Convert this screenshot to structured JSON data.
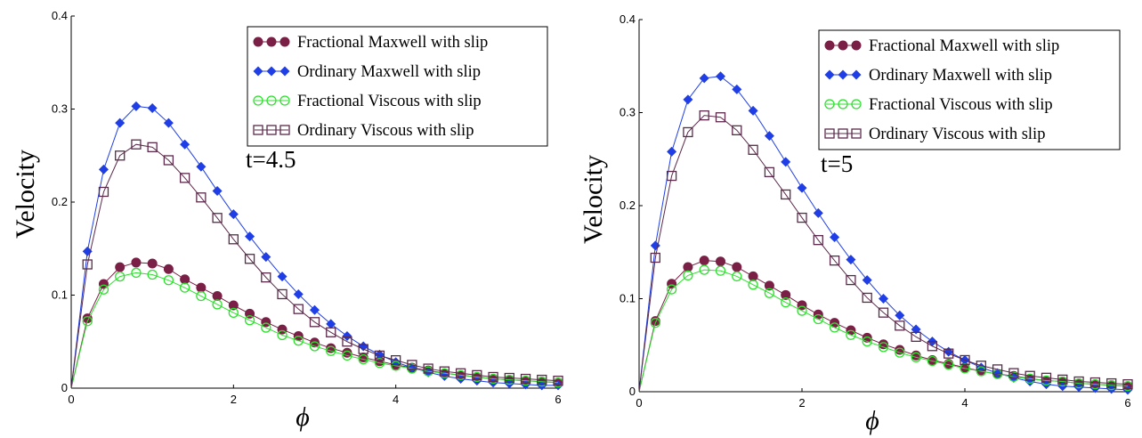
{
  "chart_data": [
    {
      "type": "line",
      "annotation": "t=4.5",
      "xlabel": "ϕ",
      "ylabel": "Velocity",
      "xlim": [
        0,
        6
      ],
      "ylim": [
        0,
        0.4
      ],
      "xticks": [
        "0",
        "2",
        "4",
        "6"
      ],
      "yticks": [
        "0",
        "0.1",
        "0.2",
        "0.3",
        "0.4"
      ],
      "grid": false,
      "legend_position": "top-right",
      "x": [
        0,
        0.2,
        0.4,
        0.6,
        0.8,
        1.0,
        1.2,
        1.4,
        1.6,
        1.8,
        2.0,
        2.2,
        2.4,
        2.6,
        2.8,
        3.0,
        3.2,
        3.4,
        3.6,
        3.8,
        4.0,
        4.2,
        4.4,
        4.6,
        4.8,
        5.0,
        5.2,
        5.4,
        5.6,
        5.8,
        6.0
      ],
      "series": [
        {
          "name": "Fractional Maxwell with slip",
          "color": "#7a1f45",
          "marker": "filled-circle",
          "values": [
            0.0,
            0.075,
            0.112,
            0.13,
            0.135,
            0.134,
            0.128,
            0.117,
            0.108,
            0.099,
            0.089,
            0.08,
            0.071,
            0.063,
            0.056,
            0.049,
            0.043,
            0.038,
            0.033,
            0.029,
            0.025,
            0.022,
            0.019,
            0.016,
            0.014,
            0.012,
            0.01,
            0.009,
            0.008,
            0.007,
            0.006
          ]
        },
        {
          "name": "Ordinary Maxwell with slip",
          "color": "#1f3ee6",
          "marker": "filled-diamond",
          "values": [
            0.0,
            0.147,
            0.235,
            0.285,
            0.303,
            0.301,
            0.285,
            0.262,
            0.238,
            0.212,
            0.187,
            0.163,
            0.141,
            0.12,
            0.101,
            0.084,
            0.069,
            0.056,
            0.045,
            0.036,
            0.028,
            0.022,
            0.017,
            0.013,
            0.01,
            0.008,
            0.006,
            0.005,
            0.004,
            0.003,
            0.003
          ]
        },
        {
          "name": "Fractional Viscous with slip",
          "color": "#2de02d",
          "marker": "open-circle",
          "values": [
            0.0,
            0.072,
            0.106,
            0.12,
            0.124,
            0.122,
            0.116,
            0.108,
            0.099,
            0.09,
            0.081,
            0.073,
            0.065,
            0.057,
            0.051,
            0.045,
            0.04,
            0.035,
            0.031,
            0.027,
            0.024,
            0.021,
            0.018,
            0.016,
            0.014,
            0.012,
            0.01,
            0.009,
            0.008,
            0.007,
            0.006
          ]
        },
        {
          "name": "Ordinary Viscous with slip",
          "color": "#5b2a4a",
          "marker": "open-square",
          "values": [
            0.0,
            0.133,
            0.211,
            0.25,
            0.262,
            0.259,
            0.245,
            0.226,
            0.205,
            0.183,
            0.16,
            0.139,
            0.119,
            0.101,
            0.085,
            0.071,
            0.06,
            0.05,
            0.042,
            0.035,
            0.03,
            0.025,
            0.021,
            0.018,
            0.016,
            0.014,
            0.012,
            0.011,
            0.01,
            0.009,
            0.008
          ]
        }
      ]
    },
    {
      "type": "line",
      "annotation": "t=5",
      "xlabel": "ϕ",
      "ylabel": "Velocity",
      "xlim": [
        0,
        6
      ],
      "ylim": [
        0,
        0.4
      ],
      "xticks": [
        "0",
        "2",
        "4",
        "6"
      ],
      "yticks": [
        "0",
        "0.1",
        "0.2",
        "0.3",
        "0.4"
      ],
      "grid": false,
      "legend_position": "top-right",
      "x": [
        0,
        0.2,
        0.4,
        0.6,
        0.8,
        1.0,
        1.2,
        1.4,
        1.6,
        1.8,
        2.0,
        2.2,
        2.4,
        2.6,
        2.8,
        3.0,
        3.2,
        3.4,
        3.6,
        3.8,
        4.0,
        4.2,
        4.4,
        4.6,
        4.8,
        5.0,
        5.2,
        5.4,
        5.6,
        5.8,
        6.0
      ],
      "series": [
        {
          "name": "Fractional Maxwell with slip",
          "color": "#7a1f45",
          "marker": "filled-circle",
          "values": [
            0.0,
            0.076,
            0.116,
            0.134,
            0.141,
            0.14,
            0.134,
            0.124,
            0.114,
            0.104,
            0.093,
            0.083,
            0.074,
            0.066,
            0.058,
            0.051,
            0.045,
            0.039,
            0.034,
            0.03,
            0.026,
            0.022,
            0.019,
            0.017,
            0.014,
            0.012,
            0.011,
            0.009,
            0.008,
            0.007,
            0.006
          ]
        },
        {
          "name": "Ordinary Maxwell with slip",
          "color": "#1f3ee6",
          "marker": "filled-diamond",
          "values": [
            0.0,
            0.157,
            0.258,
            0.314,
            0.337,
            0.339,
            0.325,
            0.302,
            0.275,
            0.247,
            0.219,
            0.192,
            0.166,
            0.142,
            0.12,
            0.1,
            0.082,
            0.067,
            0.054,
            0.043,
            0.034,
            0.026,
            0.02,
            0.015,
            0.011,
            0.008,
            0.006,
            0.005,
            0.004,
            0.003,
            0.002
          ]
        },
        {
          "name": "Fractional Viscous with slip",
          "color": "#2de02d",
          "marker": "open-circle",
          "values": [
            0.0,
            0.074,
            0.11,
            0.125,
            0.131,
            0.13,
            0.124,
            0.115,
            0.106,
            0.096,
            0.087,
            0.078,
            0.069,
            0.061,
            0.054,
            0.048,
            0.042,
            0.037,
            0.033,
            0.029,
            0.025,
            0.022,
            0.019,
            0.016,
            0.014,
            0.012,
            0.011,
            0.009,
            0.008,
            0.007,
            0.006
          ]
        },
        {
          "name": "Ordinary Viscous with slip",
          "color": "#5b2a4a",
          "marker": "open-square",
          "values": [
            0.0,
            0.144,
            0.232,
            0.279,
            0.297,
            0.295,
            0.281,
            0.26,
            0.236,
            0.212,
            0.187,
            0.163,
            0.141,
            0.12,
            0.101,
            0.085,
            0.071,
            0.059,
            0.049,
            0.041,
            0.034,
            0.028,
            0.024,
            0.02,
            0.017,
            0.015,
            0.013,
            0.011,
            0.01,
            0.009,
            0.008
          ]
        }
      ]
    }
  ]
}
